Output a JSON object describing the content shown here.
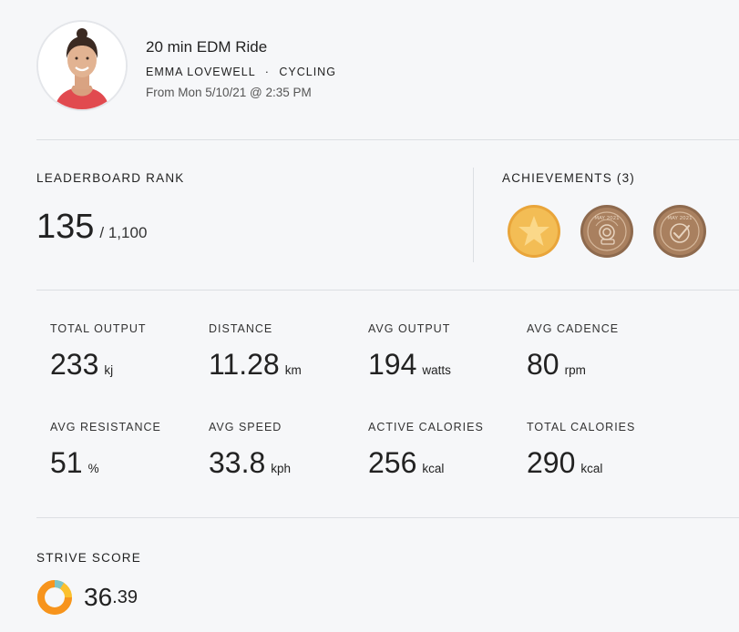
{
  "workout": {
    "title": "20 min EDM Ride",
    "instructor": "EMMA LOVEWELL",
    "separator": "·",
    "discipline": "CYCLING",
    "date": "From Mon 5/10/21 @ 2:35 PM"
  },
  "leaderboard": {
    "label": "LEADERBOARD RANK",
    "rank": "135",
    "total": "/ 1,100"
  },
  "achievements": {
    "label": "ACHIEVEMENTS (3)",
    "badges": [
      {
        "icon": "gold-star-badge-icon",
        "color": "#f0b64c"
      },
      {
        "icon": "may-2021-challenge-badge-icon",
        "text": "MAY 2021",
        "color": "#a07a5c"
      },
      {
        "icon": "may-2021-check-badge-icon",
        "text": "MAY 2021",
        "color": "#a07a5c"
      }
    ]
  },
  "metrics": [
    {
      "label": "TOTAL OUTPUT",
      "value": "233",
      "unit": "kj"
    },
    {
      "label": "DISTANCE",
      "value": "11.28",
      "unit": "km"
    },
    {
      "label": "AVG OUTPUT",
      "value": "194",
      "unit": "watts"
    },
    {
      "label": "AVG CADENCE",
      "value": "80",
      "unit": "rpm"
    },
    {
      "label": "AVG RESISTANCE",
      "value": "51",
      "unit": "%"
    },
    {
      "label": "AVG SPEED",
      "value": "33.8",
      "unit": "kph"
    },
    {
      "label": "ACTIVE CALORIES",
      "value": "256",
      "unit": "kcal"
    },
    {
      "label": "TOTAL CALORIES",
      "value": "290",
      "unit": "kcal"
    }
  ],
  "strive": {
    "label": "STRIVE SCORE",
    "whole": "36",
    "decimal": ".39",
    "ring_colors": [
      "#f7941d",
      "#fbc02d",
      "#7cc3c8"
    ]
  }
}
